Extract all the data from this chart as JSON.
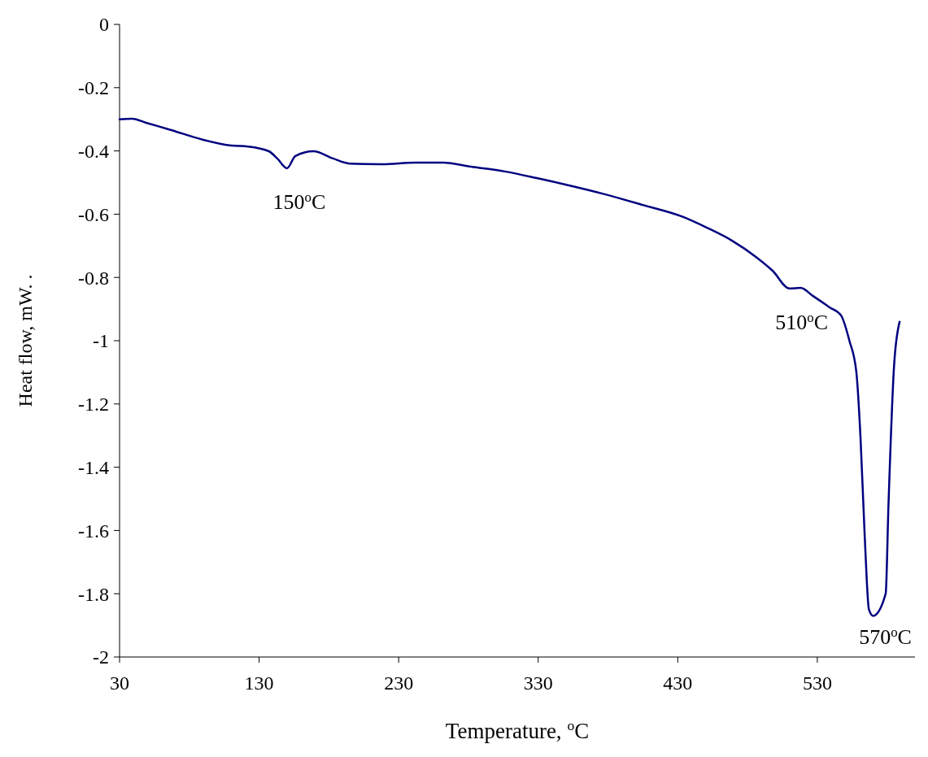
{
  "chart_data": {
    "type": "line",
    "xlabel": "Temperature, $^{o}$C",
    "ylabel": "Heat flow, mW. .",
    "xlim": [
      30,
      600
    ],
    "xticks": [
      30,
      130,
      230,
      330,
      430,
      530
    ],
    "ylim": [
      -2,
      0
    ],
    "yticks": [
      -2,
      -1.8,
      -1.6,
      -1.4,
      -1.2,
      -1,
      -0.8,
      -0.6,
      -0.4,
      -0.2,
      0
    ],
    "line_style": "solid",
    "marker": "none",
    "series": [
      {
        "color": "#000080",
        "x": [
          30,
          39,
          49,
          67,
          90,
          110,
          122,
          137,
          143,
          150,
          156,
          169,
          183,
          195,
          218,
          242,
          262,
          282,
          306,
          329,
          352,
          376,
          405,
          434,
          451,
          469,
          486,
          498,
          510,
          518,
          527,
          539,
          547,
          553,
          558,
          561,
          564,
          567,
          570,
          579,
          581,
          585,
          589
        ],
        "values": [
          -0.3,
          -0.298,
          -0.311,
          -0.334,
          -0.365,
          -0.383,
          -0.386,
          -0.401,
          -0.424,
          -0.455,
          -0.416,
          -0.401,
          -0.424,
          -0.44,
          -0.442,
          -0.437,
          -0.437,
          -0.45,
          -0.465,
          -0.486,
          -0.509,
          -0.535,
          -0.571,
          -0.609,
          -0.643,
          -0.684,
          -0.735,
          -0.779,
          -0.835,
          -0.833,
          -0.859,
          -0.895,
          -0.92,
          -1.0,
          -1.1,
          -1.31,
          -1.62,
          -1.85,
          -1.87,
          -1.8,
          -1.52,
          -1.08,
          -0.94
        ]
      }
    ],
    "annotations": [
      {
        "text": "150$^{o}$C",
        "x": 150,
        "y": -0.455
      },
      {
        "text": "510$^{o}$C",
        "x": 510,
        "y": -0.835
      },
      {
        "text": "570$^{o}$C",
        "x": 570,
        "y": -1.87
      }
    ]
  }
}
